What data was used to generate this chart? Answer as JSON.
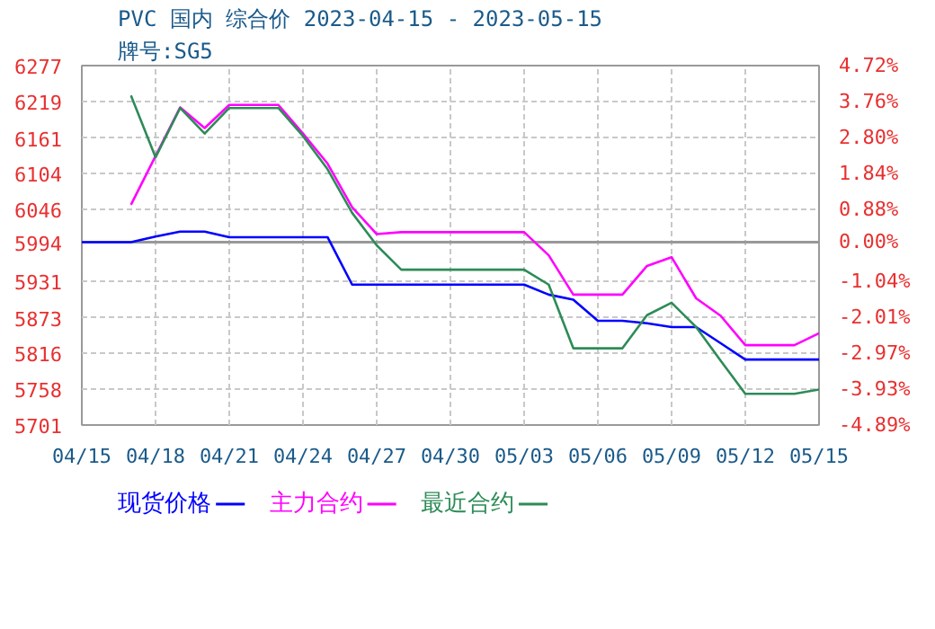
{
  "chart_data": {
    "type": "line",
    "title": "PVC 国内 综合价 2023-04-15 - 2023-05-15",
    "subtitle": "牌号:SG5",
    "xlim": [
      "2023-04-15",
      "2023-05-15"
    ],
    "xticks": [
      {
        "value": "2023-04-15",
        "label": "04/15"
      },
      {
        "value": "2023-04-18",
        "label": "04/18"
      },
      {
        "value": "2023-04-21",
        "label": "04/21"
      },
      {
        "value": "2023-04-24",
        "label": "04/24"
      },
      {
        "value": "2023-04-27",
        "label": "04/27"
      },
      {
        "value": "2023-04-30",
        "label": "04/30"
      },
      {
        "value": "2023-05-03",
        "label": "05/03"
      },
      {
        "value": "2023-05-06",
        "label": "05/06"
      },
      {
        "value": "2023-05-09",
        "label": "05/09"
      },
      {
        "value": "2023-05-12",
        "label": "05/12"
      },
      {
        "value": "2023-05-15",
        "label": "05/15"
      }
    ],
    "ylim": [
      5701,
      6277
    ],
    "yticks": [
      6277,
      6219,
      6161,
      6104,
      6046,
      5994,
      5931,
      5873,
      5816,
      5758,
      5701
    ],
    "y2lim": [
      -4.89,
      4.72
    ],
    "y2ticks": [
      {
        "value": 4.72,
        "label": "4.72%"
      },
      {
        "value": 3.76,
        "label": "3.76%"
      },
      {
        "value": 2.8,
        "label": "2.80%"
      },
      {
        "value": 1.84,
        "label": "1.84%"
      },
      {
        "value": 0.88,
        "label": "0.88%"
      },
      {
        "value": 0,
        "label": "0.00%"
      },
      {
        "value": -1.04,
        "label": "-1.04%"
      },
      {
        "value": -2.01,
        "label": "-2.01%"
      },
      {
        "value": -2.97,
        "label": "-2.97%"
      },
      {
        "value": -3.93,
        "label": "-3.93%"
      },
      {
        "value": -4.89,
        "label": "-4.89%"
      }
    ],
    "ref_lines": [
      {
        "axis": "y2",
        "value": 0,
        "color": "#999999"
      }
    ],
    "grid": true,
    "legend": "bottom",
    "series": [
      {
        "name": "现货价格",
        "color": "#0000ff",
        "x": [
          "2023-04-15",
          "2023-04-16",
          "2023-04-17",
          "2023-04-18",
          "2023-04-19",
          "2023-04-20",
          "2023-04-21",
          "2023-04-22",
          "2023-04-23",
          "2023-04-24",
          "2023-04-25",
          "2023-04-26",
          "2023-04-27",
          "2023-04-28",
          "2023-04-29",
          "2023-04-30",
          "2023-05-01",
          "2023-05-02",
          "2023-05-03",
          "2023-05-04",
          "2023-05-05",
          "2023-05-06",
          "2023-05-07",
          "2023-05-08",
          "2023-05-09",
          "2023-05-10",
          "2023-05-11",
          "2023-05-12",
          "2023-05-13",
          "2023-05-14",
          "2023-05-15"
        ],
        "values": [
          5994,
          5994,
          5994,
          6003,
          6011,
          6011,
          6002,
          6002,
          6002,
          6002,
          6002,
          5926,
          5926,
          5926,
          5926,
          5926,
          5926,
          5926,
          5926,
          5910,
          5902,
          5868,
          5868,
          5864,
          5858,
          5858,
          5832,
          5806,
          5806,
          5806,
          5806
        ]
      },
      {
        "name": "主力合约",
        "color": "#ff00ff",
        "x": [
          "2023-04-17",
          "2023-04-19",
          "2023-04-20",
          "2023-04-21",
          "2023-04-23",
          "2023-04-24",
          "2023-04-25",
          "2023-04-26",
          "2023-04-27",
          "2023-04-28",
          "2023-05-03",
          "2023-05-04",
          "2023-05-05",
          "2023-05-07",
          "2023-05-08",
          "2023-05-09",
          "2023-05-10",
          "2023-05-11",
          "2023-05-12",
          "2023-05-14",
          "2023-05-15"
        ],
        "values": [
          6054,
          6210,
          6177,
          6214,
          6214,
          6168,
          6120,
          6050,
          6007,
          6010,
          6010,
          5973,
          5910,
          5910,
          5956,
          5970,
          5904,
          5876,
          5829,
          5829,
          5848
        ]
      },
      {
        "name": "最近合约",
        "color": "#2e8b57",
        "x": [
          "2023-04-17",
          "2023-04-18",
          "2023-04-19",
          "2023-04-20",
          "2023-04-21",
          "2023-04-23",
          "2023-04-24",
          "2023-04-25",
          "2023-04-26",
          "2023-04-27",
          "2023-04-28",
          "2023-05-03",
          "2023-05-04",
          "2023-05-05",
          "2023-05-07",
          "2023-05-08",
          "2023-05-09",
          "2023-05-10",
          "2023-05-11",
          "2023-05-12",
          "2023-05-14",
          "2023-05-15"
        ],
        "values": [
          6229,
          6130,
          6209,
          6168,
          6209,
          6209,
          6164,
          6111,
          6041,
          5989,
          5950,
          5950,
          5926,
          5824,
          5824,
          5877,
          5897,
          5858,
          5804,
          5751,
          5751,
          5758
        ]
      }
    ]
  }
}
